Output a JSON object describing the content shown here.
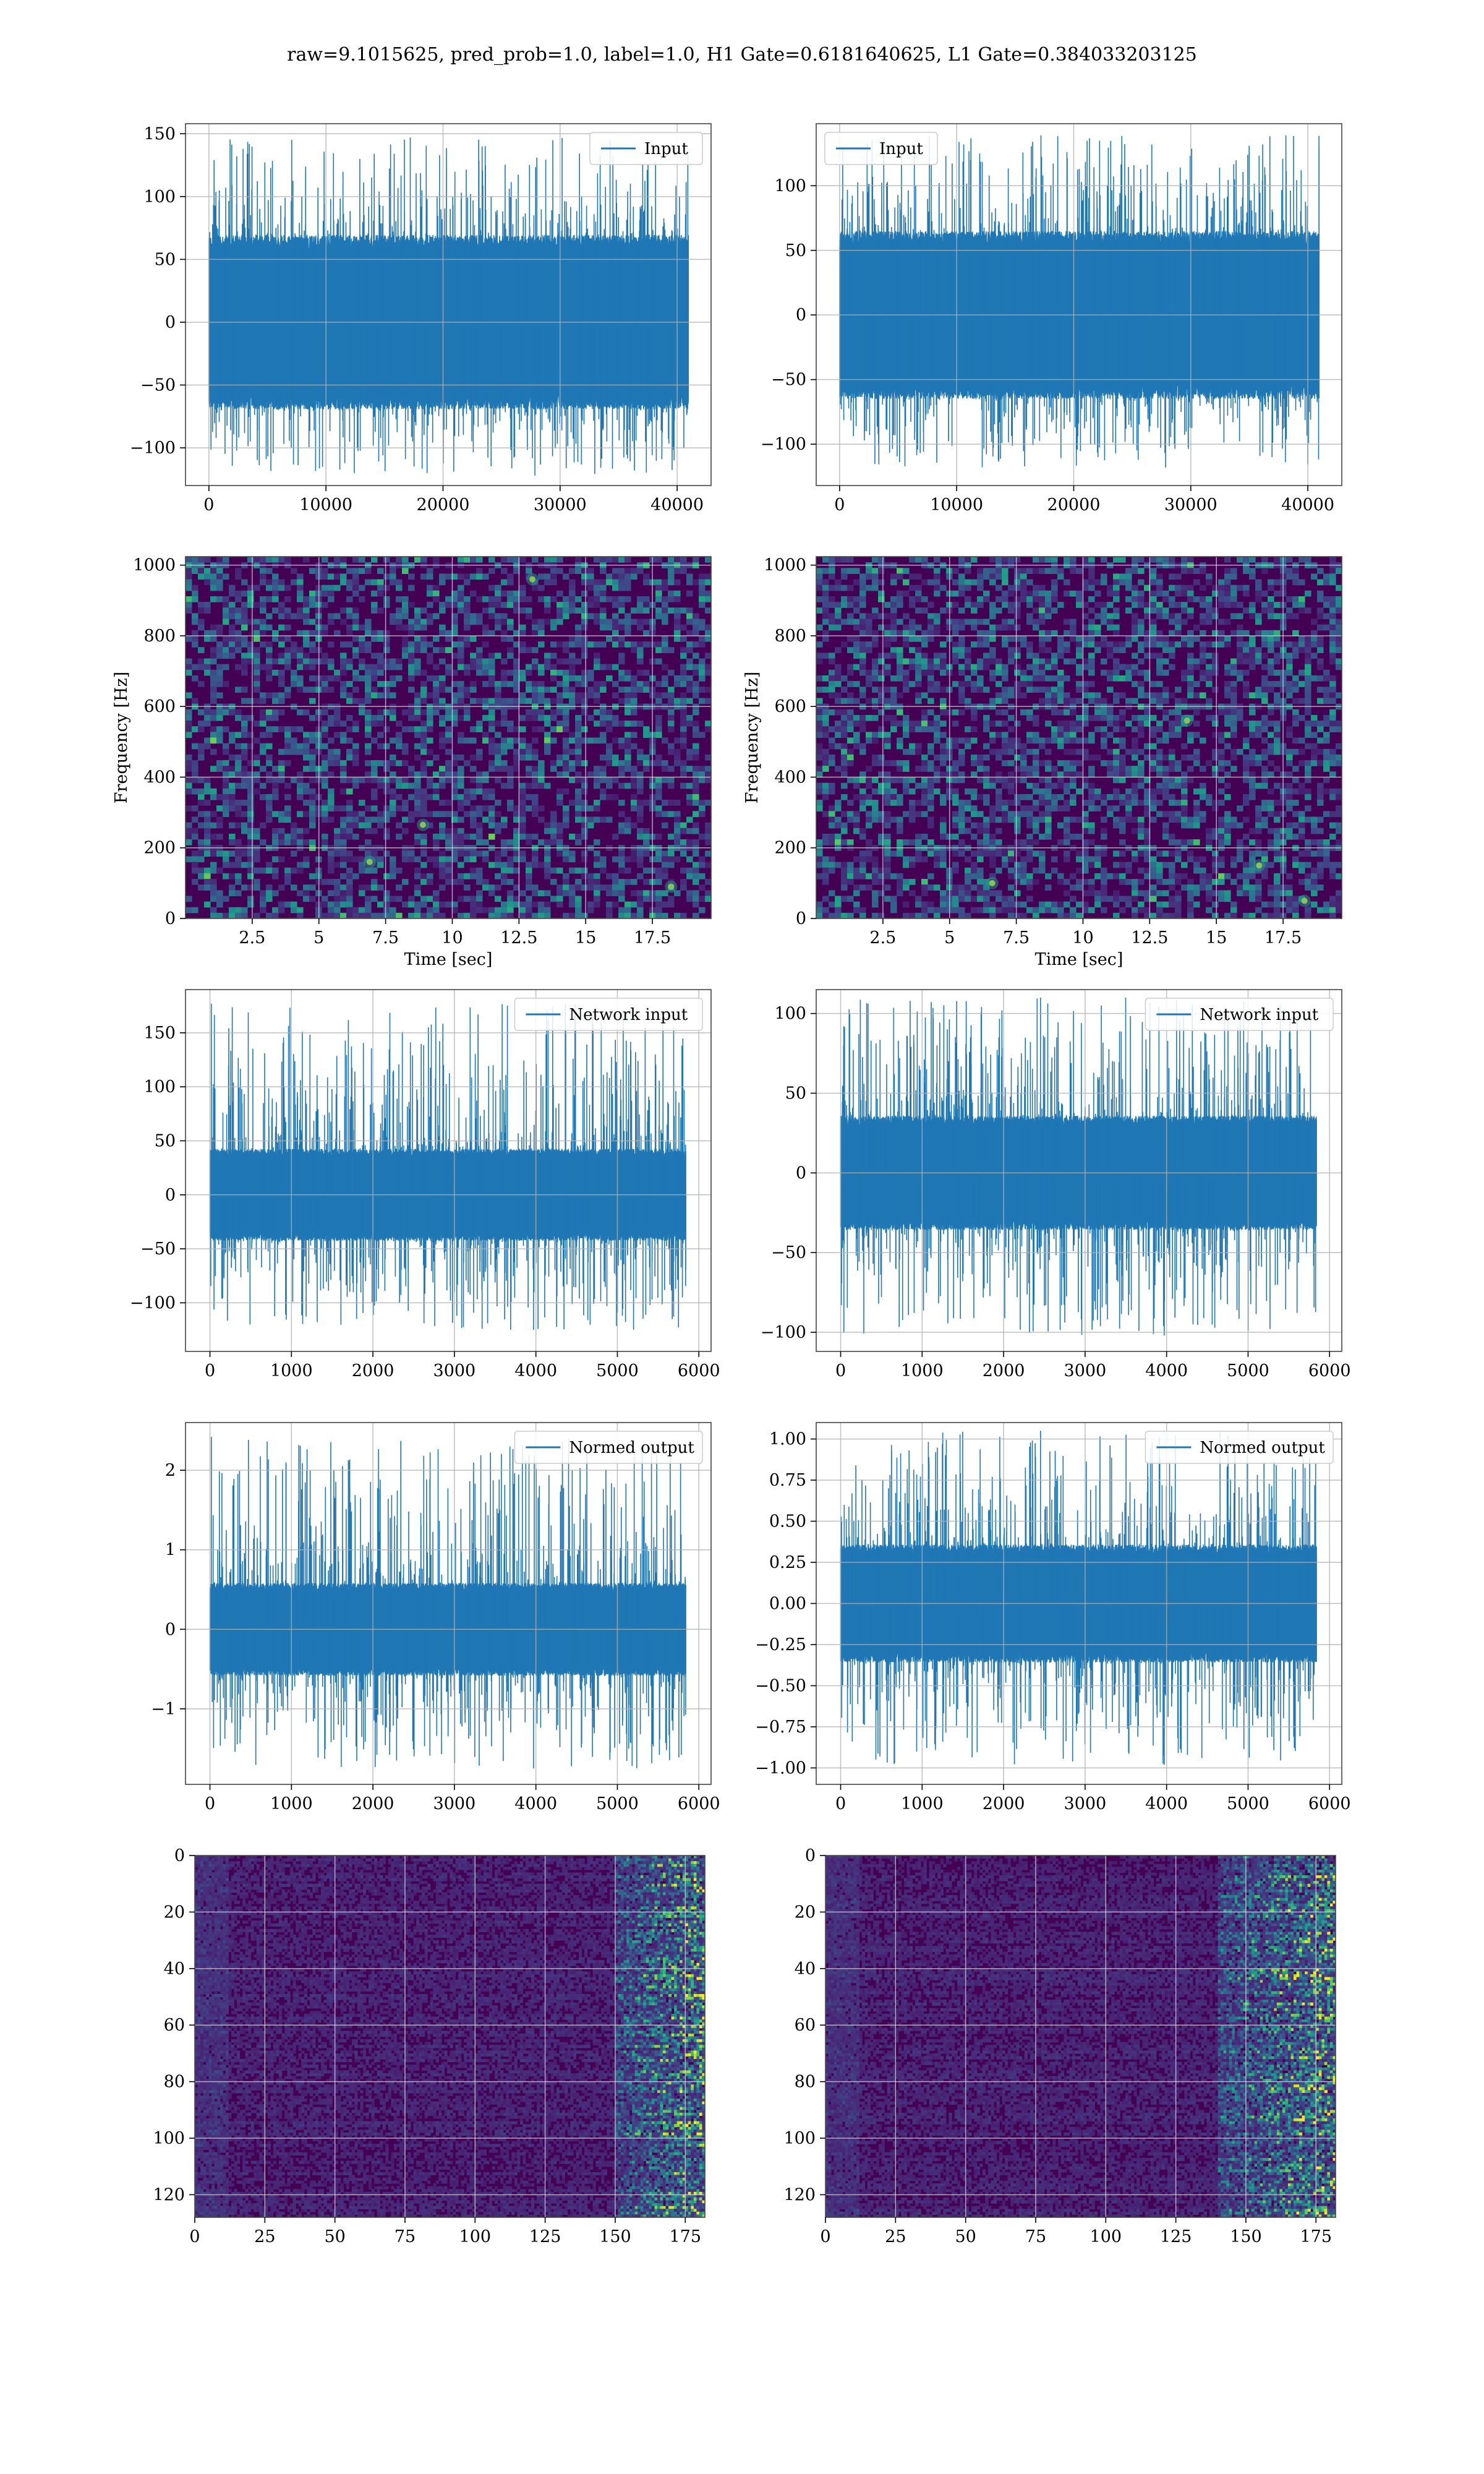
{
  "title": "raw=9.1015625, pred_prob=1.0, label=1.0, H1 Gate=0.6181640625, L1 Gate=0.384033203125",
  "colors": {
    "series": "#1f77b4",
    "grid": "#b0b0b0",
    "spine": "#000000",
    "viridis_low": "#440154",
    "viridis_mid": "#21918c",
    "viridis_high": "#fde725"
  },
  "chart_data": [
    {
      "id": "h1-input",
      "type": "line",
      "title": "",
      "xlabel": "",
      "ylabel": "",
      "xlim": [
        -2000,
        42900
      ],
      "ylim": [
        -130,
        158
      ],
      "xticks": [
        0,
        10000,
        20000,
        30000,
        40000
      ],
      "yticks": [
        -100,
        -50,
        0,
        50,
        100,
        150
      ],
      "legend": "upper right",
      "grid": true,
      "series": [
        {
          "name": "Input",
          "n": 40960,
          "envelope_upper": 62,
          "envelope_lower": -62,
          "max": 147,
          "min": -122
        }
      ]
    },
    {
      "id": "l1-input",
      "type": "line",
      "title": "",
      "xlabel": "",
      "ylabel": "",
      "xlim": [
        -2000,
        42900
      ],
      "ylim": [
        -132,
        148
      ],
      "xticks": [
        0,
        10000,
        20000,
        30000,
        40000
      ],
      "yticks": [
        -100,
        -50,
        0,
        50,
        100
      ],
      "legend": "upper left",
      "grid": true,
      "series": [
        {
          "name": "Input",
          "n": 40960,
          "envelope_upper": 58,
          "envelope_lower": -58,
          "max": 139,
          "min": -118
        }
      ]
    },
    {
      "id": "h1-spectrogram",
      "type": "heatmap",
      "title": "",
      "xlabel": "Time [sec]",
      "ylabel": "Frequency [Hz]",
      "xlim": [
        0,
        19.7
      ],
      "ylim": [
        0,
        1024
      ],
      "xticks": [
        2.5,
        5.0,
        7.5,
        10.0,
        12.5,
        15.0,
        17.5
      ],
      "yticks": [
        0,
        200,
        400,
        600,
        800,
        1000
      ],
      "grid": true,
      "colormap": "viridis",
      "notable_hotspots": [
        {
          "t": 6.9,
          "f": 160
        },
        {
          "t": 8.9,
          "f": 265
        },
        {
          "t": 18.2,
          "f": 90
        },
        {
          "t": 13.0,
          "f": 960
        }
      ]
    },
    {
      "id": "l1-spectrogram",
      "type": "heatmap",
      "title": "",
      "xlabel": "Time [sec]",
      "ylabel": "Frequency [Hz]",
      "xlim": [
        0,
        19.7
      ],
      "ylim": [
        0,
        1024
      ],
      "xticks": [
        2.5,
        5.0,
        7.5,
        10.0,
        12.5,
        15.0,
        17.5
      ],
      "yticks": [
        0,
        200,
        400,
        600,
        800,
        1000
      ],
      "grid": true,
      "colormap": "viridis",
      "notable_hotspots": [
        {
          "t": 18.3,
          "f": 50
        },
        {
          "t": 16.6,
          "f": 150
        },
        {
          "t": 13.9,
          "f": 560
        },
        {
          "t": 6.6,
          "f": 100
        }
      ]
    },
    {
      "id": "h1-network-input",
      "type": "line",
      "title": "",
      "xlabel": "",
      "ylabel": "",
      "xlim": [
        -300,
        6150
      ],
      "ylim": [
        -145,
        190
      ],
      "xticks": [
        0,
        1000,
        2000,
        3000,
        4000,
        5000,
        6000
      ],
      "yticks": [
        -100,
        -50,
        0,
        50,
        100,
        150
      ],
      "legend": "upper right",
      "grid": true,
      "series": [
        {
          "name": "Network input",
          "n": 5840,
          "envelope_upper": 38,
          "envelope_lower": -38,
          "max": 177,
          "min": -125
        }
      ]
    },
    {
      "id": "l1-network-input",
      "type": "line",
      "title": "",
      "xlabel": "",
      "ylabel": "",
      "xlim": [
        -300,
        6150
      ],
      "ylim": [
        -112,
        115
      ],
      "xticks": [
        0,
        1000,
        2000,
        3000,
        4000,
        5000,
        6000
      ],
      "yticks": [
        -100,
        -50,
        0,
        50,
        100
      ],
      "legend": "upper right",
      "grid": true,
      "series": [
        {
          "name": "Network input",
          "n": 5840,
          "envelope_upper": 32,
          "envelope_lower": -32,
          "max": 110,
          "min": -102
        }
      ]
    },
    {
      "id": "h1-normed-output",
      "type": "line",
      "title": "",
      "xlabel": "",
      "ylabel": "",
      "xlim": [
        -300,
        6150
      ],
      "ylim": [
        -1.95,
        2.6
      ],
      "xticks": [
        0,
        1000,
        2000,
        3000,
        4000,
        5000,
        6000
      ],
      "yticks": [
        -1,
        0,
        1,
        2
      ],
      "legend": "upper right",
      "grid": true,
      "series": [
        {
          "name": "Normed output",
          "n": 5840,
          "envelope_upper": 0.52,
          "envelope_lower": -0.52,
          "max": 2.42,
          "min": -1.75
        }
      ]
    },
    {
      "id": "l1-normed-output",
      "type": "line",
      "title": "",
      "xlabel": "",
      "ylabel": "",
      "xlim": [
        -300,
        6150
      ],
      "ylim": [
        -1.1,
        1.1
      ],
      "xticks": [
        0,
        1000,
        2000,
        3000,
        4000,
        5000,
        6000
      ],
      "yticks": [
        -1.0,
        -0.75,
        -0.5,
        -0.25,
        0.0,
        0.25,
        0.5,
        0.75,
        1.0
      ],
      "ytick_labels": [
        "−1.00",
        "−0.75",
        "−0.50",
        "−0.25",
        "0.00",
        "0.25",
        "0.50",
        "0.75",
        "1.00"
      ],
      "legend": "upper right",
      "grid": true,
      "series": [
        {
          "name": "Normed output",
          "n": 5840,
          "envelope_upper": 0.32,
          "envelope_lower": -0.32,
          "max": 1.05,
          "min": -0.98
        }
      ]
    },
    {
      "id": "h1-feature-map",
      "type": "heatmap",
      "title": "",
      "xlabel": "",
      "ylabel": "",
      "xlim": [
        0,
        182
      ],
      "ylim": [
        128,
        0
      ],
      "xticks": [
        0,
        25,
        50,
        75,
        100,
        125,
        150,
        175
      ],
      "yticks": [
        0,
        20,
        40,
        60,
        80,
        100,
        120
      ],
      "grid": true,
      "colormap": "viridis",
      "rows": 128,
      "cols": 182,
      "active_from_col": 150
    },
    {
      "id": "l1-feature-map",
      "type": "heatmap",
      "title": "",
      "xlabel": "",
      "ylabel": "",
      "xlim": [
        0,
        182
      ],
      "ylim": [
        128,
        0
      ],
      "xticks": [
        0,
        25,
        50,
        75,
        100,
        125,
        150,
        175
      ],
      "yticks": [
        0,
        20,
        40,
        60,
        80,
        100,
        120
      ],
      "grid": true,
      "colormap": "viridis",
      "rows": 128,
      "cols": 182,
      "active_from_col": 140
    }
  ]
}
